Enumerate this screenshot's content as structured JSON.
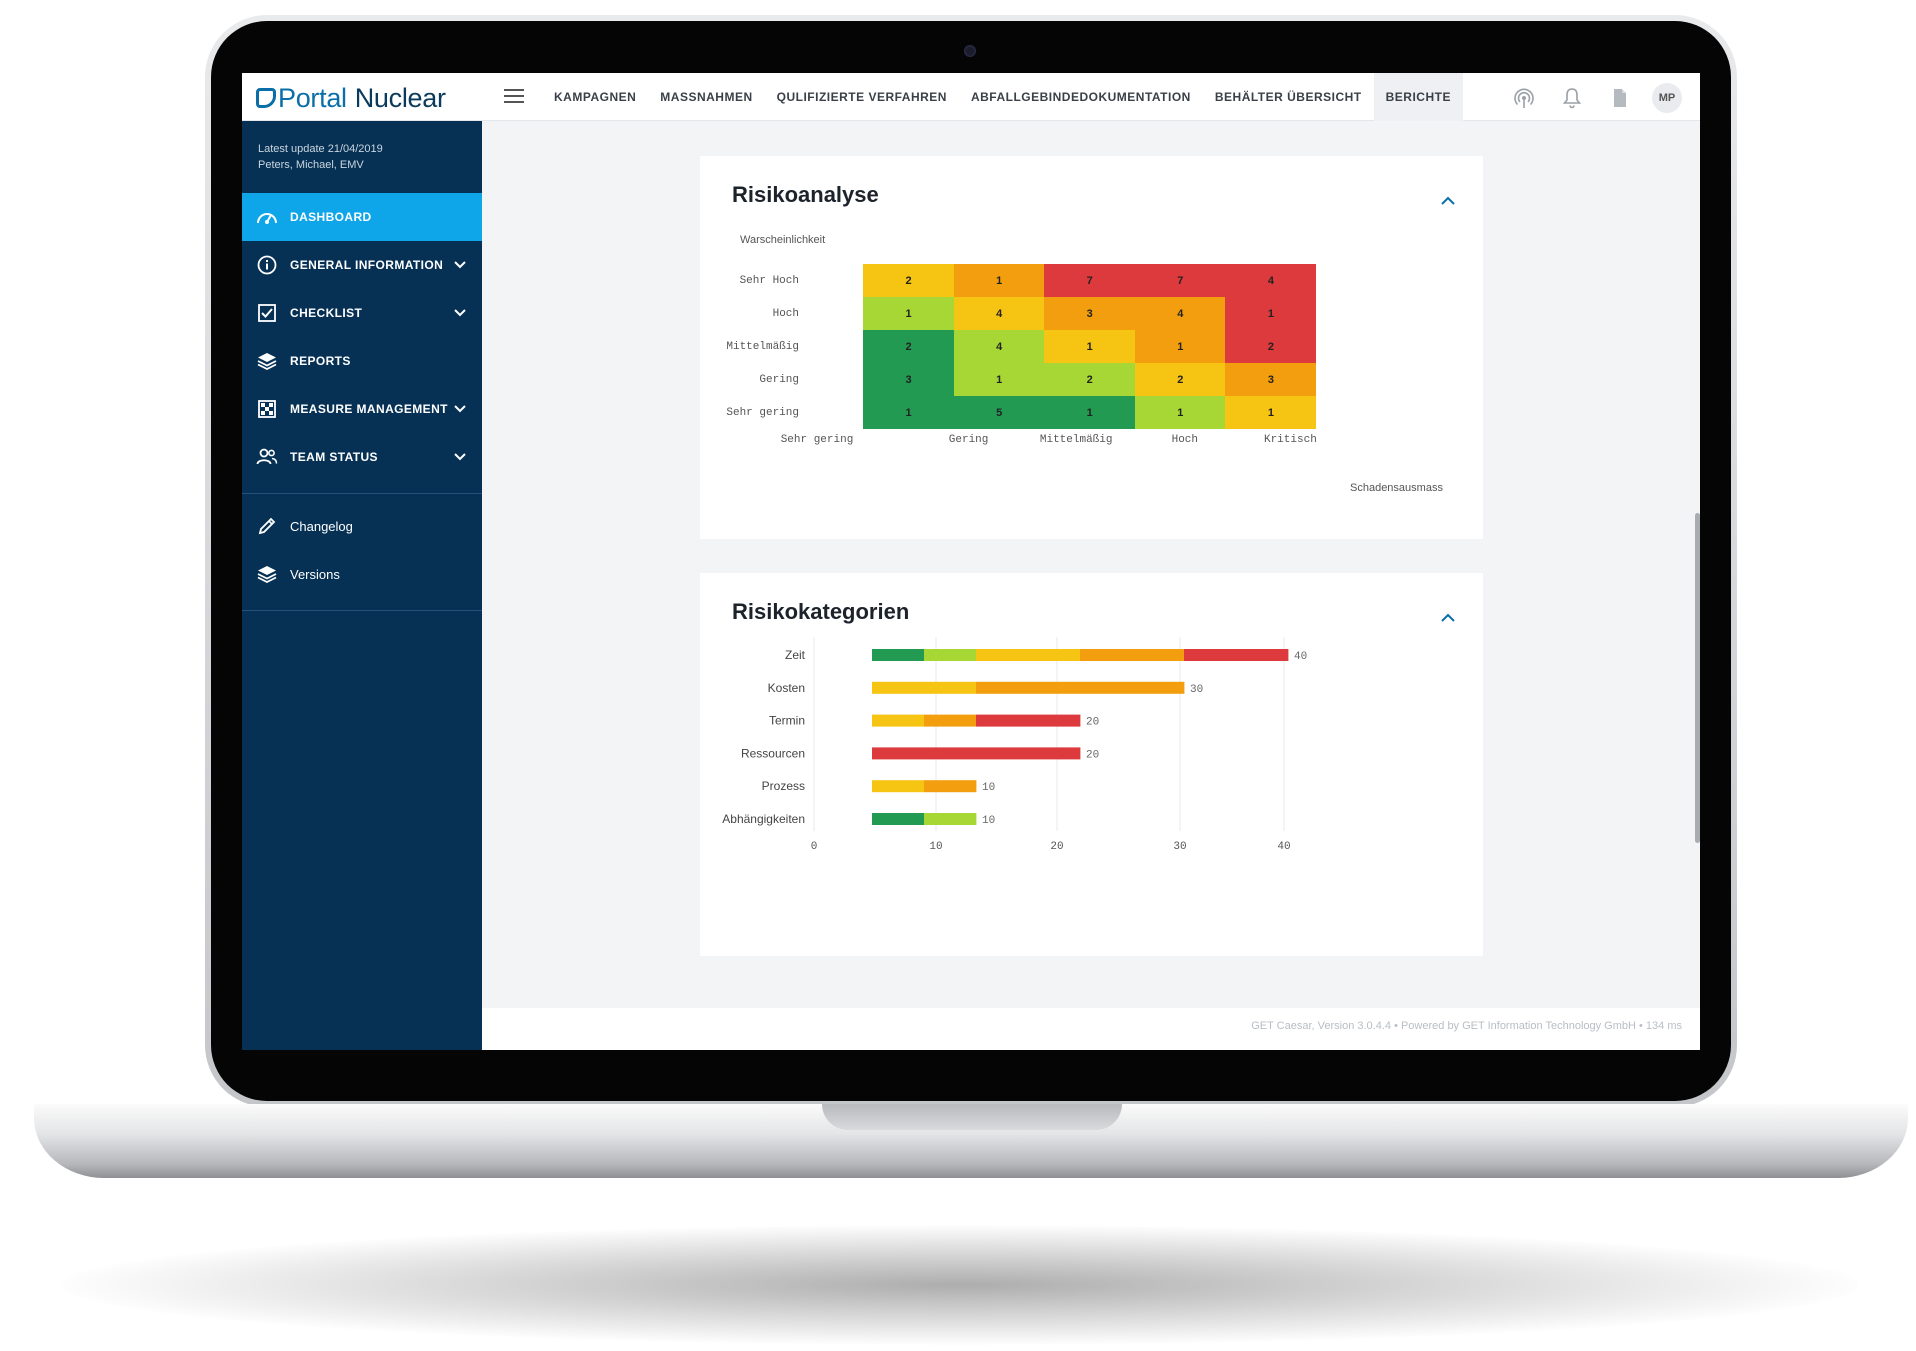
{
  "brand": {
    "logo_part1": "Portal",
    "logo_part2": "Nuclear"
  },
  "nav": {
    "items": [
      "KAMPAGNEN",
      "MASSNAHMEN",
      "QULIFIZIERTE VERFAHREN",
      "ABFALLGEBINDEDOKUMENTATION",
      "BEHÄLTER ÜBERSICHT",
      "BERICHTE"
    ],
    "active_index": 5
  },
  "user": {
    "initials": "MP"
  },
  "sidebar": {
    "update_line1": "Latest update 21/04/2019",
    "update_line2": "Peters, Michael, EMV",
    "items": [
      {
        "label": "DASHBOARD",
        "icon": "speedometer-icon"
      },
      {
        "label": "GENERAL INFORMATION",
        "icon": "info-icon"
      },
      {
        "label": "CHECKLIST",
        "icon": "checkbox-icon"
      },
      {
        "label": "REPORTS",
        "icon": "layers-icon"
      },
      {
        "label": "MEASURE MANAGEMENT",
        "icon": "grid-icon"
      },
      {
        "label": "TEAM STATUS",
        "icon": "people-icon"
      }
    ],
    "links": [
      {
        "label": "Changelog",
        "icon": "pencil-icon"
      },
      {
        "label": "Versions",
        "icon": "layers-icon"
      }
    ]
  },
  "risikoanalyse": {
    "title": "Risikoanalyse",
    "y_axis_title": "Warscheinlichkeit",
    "x_axis_title": "Schadensausmass",
    "rows": [
      "Sehr Hoch",
      "Hoch",
      "Mittelmäßig",
      "Gering",
      "Sehr gering"
    ],
    "cols": [
      "Sehr gering",
      "Gering",
      "Mittelmäßig",
      "Hoch",
      "Kritisch"
    ],
    "values": [
      [
        2,
        1,
        7,
        7,
        4
      ],
      [
        1,
        4,
        3,
        4,
        1
      ],
      [
        2,
        4,
        1,
        1,
        2
      ],
      [
        3,
        1,
        2,
        2,
        3
      ],
      [
        1,
        5,
        1,
        1,
        1
      ]
    ],
    "color_keys": [
      [
        "yellow",
        "orange",
        "red",
        "red",
        "red"
      ],
      [
        "lightgreen",
        "yellow",
        "orange",
        "orange",
        "red"
      ],
      [
        "green",
        "lightgreen",
        "yellow",
        "orange",
        "red"
      ],
      [
        "green",
        "lightgreen",
        "lightgreen",
        "yellow",
        "orange"
      ],
      [
        "green",
        "green",
        "green",
        "lightgreen",
        "yellow"
      ]
    ],
    "palette": {
      "green": "#229a52",
      "lightgreen": "#a6d734",
      "yellow": "#f6c413",
      "orange": "#f29e0f",
      "red": "#dc3a3c"
    }
  },
  "risikokategorien": {
    "title": "Risikokategorien",
    "chart_data": {
      "type": "bar",
      "orientation": "horizontal",
      "stacked": true,
      "categories": [
        "Zeit",
        "Kosten",
        "Termin",
        "Ressourcen",
        "Prozess",
        "Abhängigkeiten"
      ],
      "segments": [
        [
          [
            "green",
            5
          ],
          [
            "lightgreen",
            5
          ],
          [
            "yellow",
            10
          ],
          [
            "orange",
            10
          ],
          [
            "red",
            10
          ]
        ],
        [
          [
            "yellow",
            10
          ],
          [
            "orange",
            20
          ]
        ],
        [
          [
            "yellow",
            5
          ],
          [
            "orange",
            5
          ],
          [
            "red",
            10
          ]
        ],
        [
          [
            "red",
            20
          ]
        ],
        [
          [
            "yellow",
            5
          ],
          [
            "orange",
            5
          ]
        ],
        [
          [
            "green",
            5
          ],
          [
            "lightgreen",
            5
          ]
        ]
      ],
      "totals": [
        "40",
        "30",
        "20",
        "20",
        "10",
        "10"
      ],
      "xticks": [
        "0",
        "10",
        "20",
        "30",
        "40"
      ],
      "xlim": [
        0,
        40
      ],
      "grid": true
    }
  },
  "footer": {
    "text": "GET Caesar, Version 3.0.4.4  •  Powered by GET Information Technology GmbH  •  134 ms"
  }
}
